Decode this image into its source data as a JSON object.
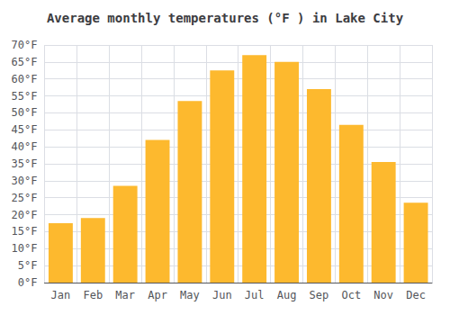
{
  "chart_data": {
    "type": "bar",
    "title": "Average monthly temperatures (°F ) in Lake City",
    "categories": [
      "Jan",
      "Feb",
      "Mar",
      "Apr",
      "May",
      "Jun",
      "Jul",
      "Aug",
      "Sep",
      "Oct",
      "Nov",
      "Dec"
    ],
    "values": [
      17.5,
      19.0,
      28.5,
      42.0,
      53.5,
      62.5,
      67.0,
      65.0,
      57.0,
      46.5,
      35.5,
      23.5
    ],
    "color": "#FDB92E",
    "ylim": [
      0,
      70
    ],
    "yticks": [
      {
        "value": 0,
        "label": "0°F"
      },
      {
        "value": 5,
        "label": "5°F"
      },
      {
        "value": 10,
        "label": "10°F"
      },
      {
        "value": 15,
        "label": "15°F"
      },
      {
        "value": 20,
        "label": "20°F"
      },
      {
        "value": 25,
        "label": "25°F"
      },
      {
        "value": 30,
        "label": "30°F"
      },
      {
        "value": 35,
        "label": "35°F"
      },
      {
        "value": 40,
        "label": "40°F"
      },
      {
        "value": 45,
        "label": "45°F"
      },
      {
        "value": 50,
        "label": "50°F"
      },
      {
        "value": 55,
        "label": "55°F"
      },
      {
        "value": 60,
        "label": "60°F"
      },
      {
        "value": 65,
        "label": "65°F"
      },
      {
        "value": 70,
        "label": "70°F"
      }
    ],
    "grid": true
  }
}
